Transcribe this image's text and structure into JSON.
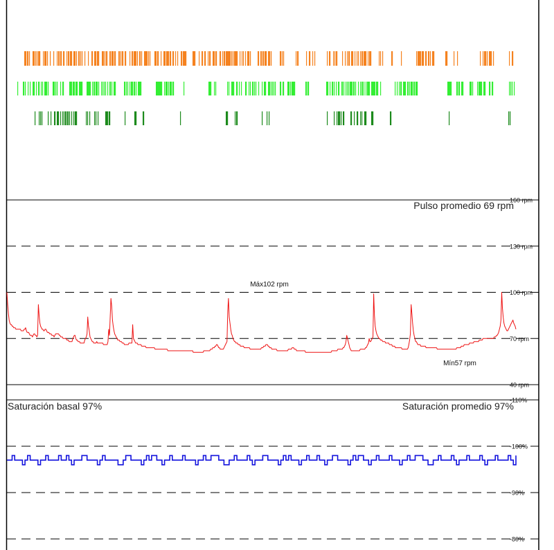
{
  "colors": {
    "event_a": "#f5821f",
    "event_b": "#33ee33",
    "event_c": "#1c8a1c",
    "pulse": "#ee1111",
    "saturation": "#1111dd",
    "grid": "#000000"
  },
  "chart_data": [
    {
      "type": "line",
      "pulse_average": "Pulso promedio 69 rpm",
      "max_label": "Máx102 rpm",
      "min_label": "Mín57 rpm",
      "ylim": [
        40,
        160
      ],
      "gridlines": [
        {
          "value": 160,
          "label": "160 rpm",
          "style": "solid"
        },
        {
          "value": 130,
          "label": "130 rpm",
          "style": "dashed"
        },
        {
          "value": 100,
          "label": "100 rpm",
          "style": "dashed"
        },
        {
          "value": 70,
          "label": "70 rpm",
          "style": "dashed"
        },
        {
          "value": 40,
          "label": "40 rpm",
          "style": "solid"
        }
      ],
      "series": [
        {
          "values": [
            100,
            92,
            86,
            82,
            80,
            79,
            79,
            78,
            78,
            77,
            77,
            77,
            76,
            76,
            76,
            76,
            76,
            76,
            76,
            75,
            75,
            75,
            75,
            76,
            76,
            77,
            75,
            74,
            74,
            74,
            73,
            72,
            72,
            72,
            71,
            72,
            73,
            73,
            72,
            72,
            71,
            72,
            92,
            85,
            80,
            78,
            77,
            76,
            76,
            75,
            75,
            76,
            76,
            75,
            74,
            74,
            74,
            73,
            73,
            73,
            72,
            72,
            72,
            71,
            72,
            73,
            73,
            73,
            73,
            73,
            72,
            72,
            71,
            71,
            71,
            70,
            70,
            70,
            70,
            70,
            69,
            69,
            69,
            68,
            68,
            68,
            68,
            68,
            70,
            71,
            72,
            72,
            70,
            69,
            69,
            68,
            68,
            68,
            67,
            67,
            67,
            67,
            67,
            67,
            69,
            70,
            71,
            73,
            84,
            78,
            75,
            71,
            70,
            69,
            68,
            68,
            67,
            67,
            67,
            67,
            68,
            67,
            67,
            67,
            67,
            67,
            67,
            67,
            67,
            66,
            66,
            66,
            66,
            66,
            66,
            68,
            76,
            72,
            85,
            96,
            91,
            82,
            78,
            75,
            73,
            72,
            71,
            70,
            69,
            69,
            69,
            68,
            68,
            68,
            67,
            67,
            67,
            66,
            66,
            66,
            66,
            66,
            66,
            67,
            67,
            67,
            67,
            67,
            79,
            70,
            69,
            68,
            67,
            67,
            67,
            66,
            66,
            66,
            66,
            66,
            65,
            65,
            65,
            65,
            65,
            65,
            64,
            64,
            64,
            64,
            64,
            64,
            64,
            64,
            64,
            64,
            64,
            64,
            63,
            63,
            63,
            63,
            63,
            63,
            63,
            63,
            63,
            63,
            63,
            63,
            63,
            63,
            63,
            63,
            63,
            62,
            62,
            62,
            62,
            62,
            62,
            62,
            62,
            62,
            62,
            62,
            62,
            62,
            62,
            62,
            62,
            62,
            62,
            62,
            62,
            62,
            62,
            62,
            62,
            62,
            62,
            62,
            62,
            62,
            62,
            62,
            62,
            62,
            62,
            61,
            61,
            61,
            61,
            61,
            61,
            61,
            61,
            61,
            61,
            61,
            61,
            61,
            61,
            62,
            62,
            62,
            62,
            62,
            62,
            62,
            62,
            62,
            63,
            63,
            63,
            64,
            64,
            64,
            65,
            65,
            66,
            66,
            65,
            64,
            64,
            63,
            63,
            63,
            63,
            63,
            64,
            65,
            66,
            67,
            68,
            88,
            96,
            84,
            80,
            76,
            73,
            72,
            70,
            69,
            68,
            68,
            67,
            67,
            67,
            66,
            66,
            66,
            65,
            65,
            65,
            65,
            65,
            64,
            64,
            64,
            64,
            64,
            64,
            64,
            64,
            63,
            63,
            63,
            63,
            63,
            63,
            63,
            63,
            63,
            63,
            63,
            63,
            63,
            63,
            63,
            64,
            64,
            64,
            65,
            65,
            65,
            66,
            66,
            66,
            65,
            65,
            64,
            64,
            64,
            63,
            63,
            63,
            63,
            63,
            63,
            63,
            62,
            62,
            62,
            62,
            62,
            62,
            62,
            62,
            62,
            62,
            62,
            62,
            62,
            62,
            62,
            63,
            63,
            63,
            63,
            63,
            64,
            64,
            64,
            63,
            63,
            63,
            62,
            62,
            62,
            62,
            62,
            62,
            62,
            62,
            62,
            62,
            62,
            62,
            61,
            61,
            61,
            61,
            61,
            61,
            61,
            61,
            61,
            61,
            61,
            61,
            61,
            61,
            61,
            61,
            61,
            61,
            61,
            61,
            61,
            61,
            61,
            61,
            61,
            61,
            61,
            61,
            61,
            61,
            61,
            61,
            61,
            61,
            61,
            62,
            62,
            62,
            62,
            62,
            62,
            62,
            62,
            63,
            63,
            63,
            63,
            63,
            63,
            63,
            64,
            64,
            65,
            66,
            68,
            72,
            70,
            68,
            66,
            64,
            63,
            62,
            62,
            62,
            62,
            62,
            62,
            62,
            62,
            62,
            62,
            62,
            62,
            63,
            63,
            63,
            63,
            63,
            63,
            63,
            64,
            64,
            65,
            66,
            67,
            70,
            68,
            68,
            69,
            70,
            71,
            99,
            85,
            78,
            75,
            73,
            72,
            71,
            70,
            70,
            69,
            69,
            69,
            68,
            68,
            68,
            68,
            67,
            67,
            67,
            67,
            67,
            66,
            66,
            66,
            66,
            65,
            65,
            65,
            65,
            64,
            64,
            64,
            64,
            64,
            64,
            64,
            64,
            64,
            63,
            63,
            63,
            63,
            63,
            63,
            63,
            63,
            64,
            66,
            69,
            73,
            92,
            86,
            80,
            75,
            72,
            70,
            68,
            68,
            67,
            66,
            66,
            66,
            66,
            65,
            65,
            65,
            65,
            65,
            65,
            65,
            64,
            64,
            64,
            64,
            64,
            64,
            64,
            64,
            64,
            64,
            64,
            64,
            64,
            64,
            64,
            63,
            63,
            63,
            63,
            63,
            63,
            63,
            63,
            63,
            63,
            63,
            63,
            63,
            63,
            63,
            63,
            63,
            63,
            63,
            63,
            63,
            63,
            63,
            63,
            63,
            63,
            64,
            64,
            64,
            64,
            64,
            64,
            65,
            65,
            65,
            65,
            66,
            66,
            66,
            66,
            66,
            66,
            66,
            67,
            67,
            67,
            67,
            67,
            67,
            68,
            68,
            68,
            68,
            68,
            68,
            68,
            69,
            69,
            69,
            69,
            69,
            70,
            70,
            70,
            70,
            70,
            70,
            70,
            70,
            70,
            70,
            70,
            70,
            70,
            70,
            70,
            71,
            71,
            71,
            72,
            72,
            73,
            74,
            76,
            78,
            82,
            100,
            90,
            84,
            80,
            78,
            77,
            76,
            75,
            75,
            76,
            77,
            78,
            79,
            80,
            81,
            82,
            80,
            79,
            78,
            76
          ]
        }
      ]
    },
    {
      "type": "line",
      "basal": "Saturación basal 97%",
      "average": "Saturación promedio 97%",
      "ylim": [
        80,
        110
      ],
      "gridlines": [
        {
          "value": 110,
          "label": "-110%",
          "style": "solid"
        },
        {
          "value": 100,
          "label": "-100%",
          "style": "dashed"
        },
        {
          "value": 90,
          "label": "-90%",
          "style": "dashed"
        },
        {
          "value": 80,
          "label": "-80%",
          "style": "dashed"
        }
      ],
      "series": [
        {
          "values": [
            97,
            97,
            98,
            97,
            97,
            97,
            96,
            97,
            98,
            97,
            97,
            97,
            96,
            97,
            97,
            98,
            97,
            97,
            97,
            97,
            98,
            97,
            97,
            98,
            97,
            96,
            97,
            97,
            97,
            98,
            98,
            97,
            97,
            97,
            97,
            96,
            97,
            98,
            97,
            97,
            97,
            97,
            97,
            96,
            96,
            97,
            98,
            98,
            97,
            97,
            97,
            97,
            96,
            97,
            98,
            97,
            98,
            98,
            97,
            97,
            96,
            97,
            97,
            98,
            97,
            97,
            97,
            97,
            98,
            97,
            97,
            97,
            97,
            96,
            97,
            97,
            98,
            97,
            97,
            98,
            98,
            98,
            97,
            97,
            96,
            96,
            97,
            97,
            98,
            97,
            97,
            97,
            97,
            98,
            97,
            96,
            97,
            97,
            97,
            98,
            98,
            97,
            97,
            97,
            97,
            96,
            97,
            98,
            97,
            98,
            97,
            97,
            97,
            96,
            97,
            97,
            98,
            97,
            97,
            97,
            98,
            97,
            97,
            96,
            97,
            97,
            98,
            98,
            97,
            97,
            97,
            97,
            96,
            97,
            98,
            97,
            98,
            98,
            97,
            97,
            96,
            97,
            97,
            98,
            97,
            97,
            97,
            97,
            98,
            97,
            97,
            97,
            96,
            97,
            97,
            98,
            97,
            97,
            98,
            98,
            98,
            97,
            97,
            96,
            96,
            97,
            97,
            98,
            97,
            97,
            97,
            97,
            98,
            97,
            96,
            97,
            97,
            97,
            98,
            97,
            97,
            97,
            97,
            98,
            97,
            96,
            97,
            97,
            97,
            98,
            97,
            97,
            97,
            97,
            98,
            97,
            96,
            98
          ]
        }
      ]
    }
  ]
}
